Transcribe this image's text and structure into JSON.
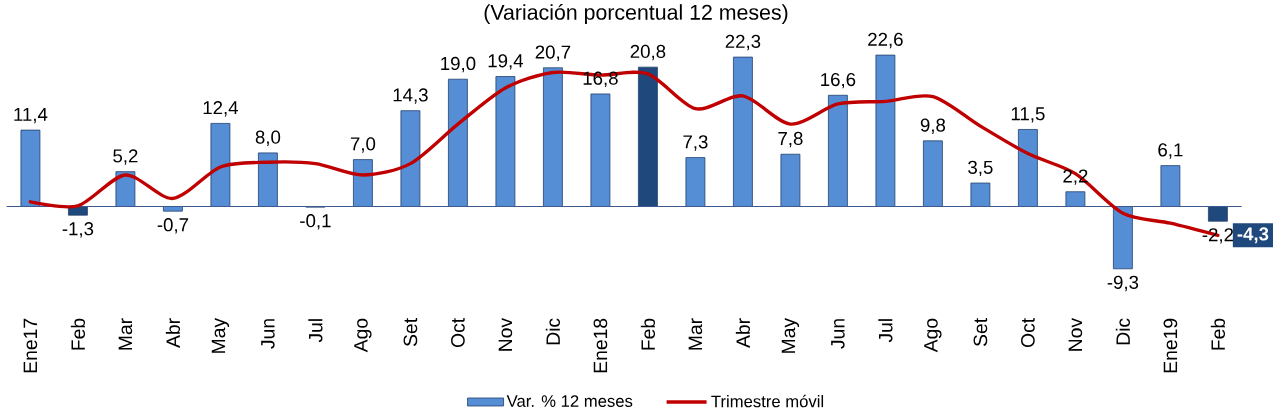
{
  "chart_data": {
    "type": "bar",
    "title": "(Variación porcentual 12 meses)",
    "categories": [
      "Ene17",
      "Feb",
      "Mar",
      "Abr",
      "May",
      "Jun",
      "Jul",
      "Ago",
      "Set",
      "Oct",
      "Nov",
      "Dic",
      "Ene18",
      "Feb",
      "Mar",
      "Abr",
      "May",
      "Jun",
      "Jul",
      "Ago",
      "Set",
      "Oct",
      "Nov",
      "Dic",
      "Ene19",
      "Feb"
    ],
    "tick_labels": "x",
    "legend": "bottom",
    "ref_lines": [
      {
        "axis": "y",
        "value": 0,
        "color": "#3d5a8f"
      }
    ],
    "series": [
      {
        "name": "Var. % 12 meses",
        "color": "#558ed5",
        "colors": [
          "#558ed5",
          "#1f497d",
          "#558ed5",
          "#558ed5",
          "#558ed5",
          "#558ed5",
          "#558ed5",
          "#558ed5",
          "#558ed5",
          "#558ed5",
          "#558ed5",
          "#558ed5",
          "#558ed5",
          "#1f497d",
          "#558ed5",
          "#558ed5",
          "#558ed5",
          "#558ed5",
          "#558ed5",
          "#558ed5",
          "#558ed5",
          "#558ed5",
          "#558ed5",
          "#558ed5",
          "#558ed5",
          "#1f497d"
        ],
        "values": [
          11.4,
          -1.3,
          5.2,
          -0.7,
          12.4,
          8.0,
          -0.1,
          7.0,
          14.3,
          19.0,
          19.4,
          20.7,
          16.8,
          20.8,
          7.3,
          22.3,
          7.8,
          16.6,
          22.6,
          9.8,
          3.5,
          11.5,
          2.2,
          -9.3,
          6.1,
          -2.2
        ],
        "value_labels": [
          "11,4",
          "-1,3",
          "5,2",
          "-0,7",
          "12,4",
          "8,0",
          "-0,1",
          "7,0",
          "14,3",
          "19,0",
          "19,4",
          "20,7",
          "16,8",
          "20,8",
          "7,3",
          "22,3",
          "7,8",
          "16,6",
          "22,6",
          "9,8",
          "3,5",
          "11,5",
          "2,2",
          "-9,3",
          "6,1",
          "-2,2"
        ]
      },
      {
        "name": "Trimestre móvil",
        "type": "line",
        "color": "#c00000",
        "values": [
          0.7,
          0.1,
          4.7,
          1.2,
          5.9,
          6.6,
          6.4,
          4.7,
          6.4,
          12.3,
          17.7,
          20.0,
          19.6,
          19.8,
          14.6,
          16.5,
          12.3,
          15.3,
          15.7,
          16.4,
          12.0,
          7.9,
          4.9,
          -1.0,
          -2.5,
          -4.3
        ],
        "value_labels": [
          null,
          null,
          null,
          null,
          null,
          null,
          null,
          null,
          null,
          null,
          null,
          null,
          null,
          null,
          null,
          null,
          null,
          null,
          null,
          null,
          null,
          null,
          null,
          null,
          null,
          "-4,3"
        ]
      }
    ]
  }
}
